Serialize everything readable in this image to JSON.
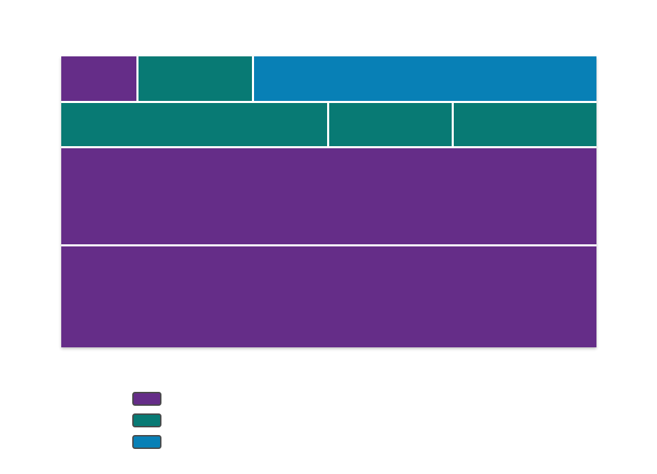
{
  "colors": {
    "purple": "#652d88",
    "teal": "#087a74",
    "blue": "#0880b6"
  },
  "diagram": {
    "rows": [
      {
        "cells": [
          {
            "name": "block-r1-c1",
            "color": "purple"
          },
          {
            "name": "block-r1-c2",
            "color": "teal"
          },
          {
            "name": "block-r1-c3",
            "color": "blue"
          }
        ]
      },
      {
        "cells": [
          {
            "name": "block-r2-c1",
            "color": "teal"
          },
          {
            "name": "block-r2-c2",
            "color": "teal"
          },
          {
            "name": "block-r2-c3",
            "color": "teal"
          }
        ]
      },
      {
        "cells": [
          {
            "name": "block-r3-c1",
            "color": "purple"
          }
        ]
      },
      {
        "cells": [
          {
            "name": "block-r4-c1",
            "color": "purple"
          }
        ]
      }
    ]
  },
  "legend": [
    {
      "color": "purple"
    },
    {
      "color": "teal"
    },
    {
      "color": "blue"
    }
  ]
}
